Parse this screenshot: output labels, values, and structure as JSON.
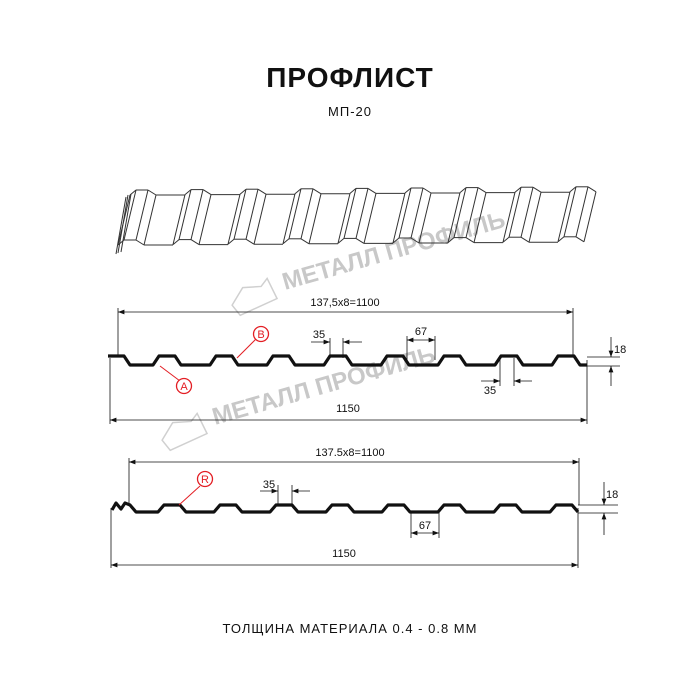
{
  "header": {
    "title": "ПРОФЛИСТ",
    "subtitle": "МП-20"
  },
  "watermark": {
    "text": "МЕТАЛЛ ПРОФИЛЬ",
    "color": "#c8c8c8"
  },
  "profile_1": {
    "pitch_label": "137,5x8=1100",
    "width_label": "1150",
    "crest_label": "35",
    "bottom_label": "35",
    "flat_label": "67",
    "height_label": "18",
    "marker_a": "A",
    "marker_b": "B"
  },
  "profile_2": {
    "pitch_label": "137.5x8=1100",
    "width_label": "1150",
    "crest_label": "35",
    "flat_label": "67",
    "height_label": "18",
    "marker_r": "R"
  },
  "footer": {
    "thickness": "ТОЛЩИНА МАТЕРИАЛА 0.4 - 0.8 ММ"
  },
  "colors": {
    "marker": "#e31e24",
    "line": "#111111"
  }
}
